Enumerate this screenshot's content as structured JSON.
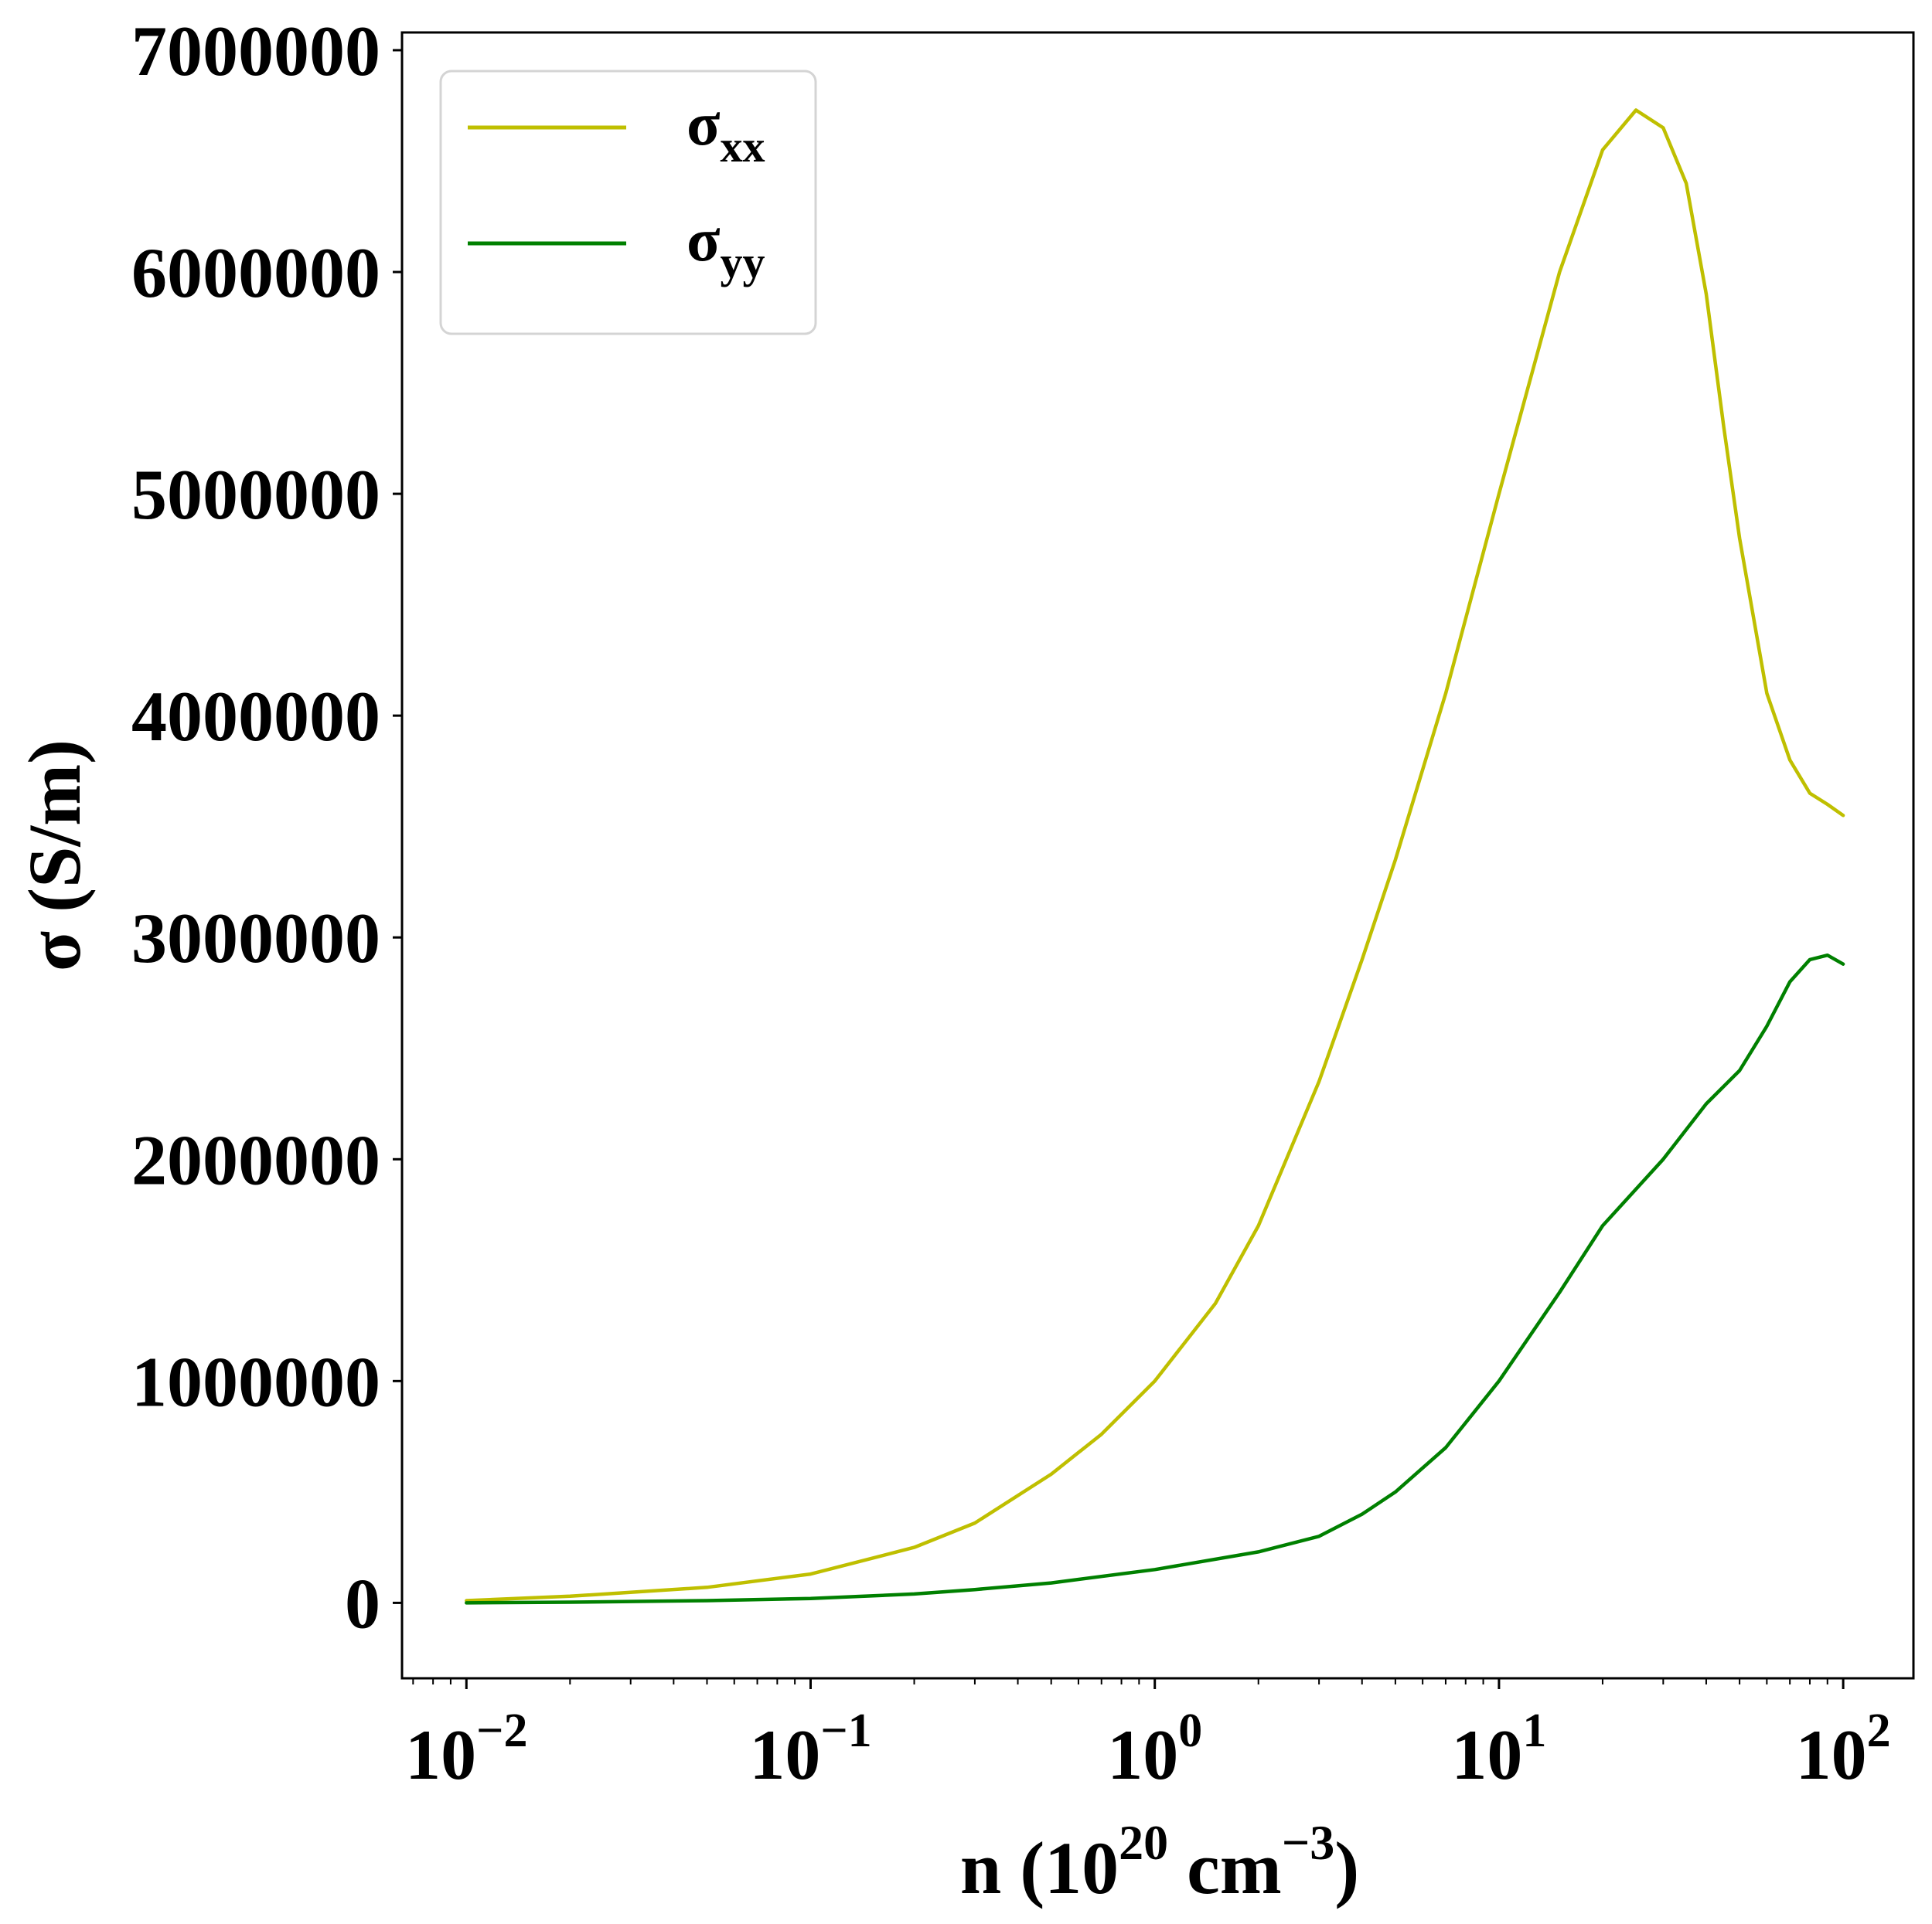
{
  "chart_data": {
    "type": "line",
    "xscale": "log",
    "xlabel": {
      "base": "n (10",
      "sup1": "20",
      "mid": " cm",
      "sup2": "−3",
      "end": ")"
    },
    "ylabel": "σ (S/m)",
    "xlim": [
      0.0065,
      160
    ],
    "ylim": [
      -340000,
      7080000
    ],
    "grid": false,
    "legend_position": "upper-left",
    "x_ticks": [
      {
        "value": 0.01,
        "base": "10",
        "exp": "−2"
      },
      {
        "value": 0.1,
        "base": "10",
        "exp": "−1"
      },
      {
        "value": 1,
        "base": "10",
        "exp": "0"
      },
      {
        "value": 10,
        "base": "10",
        "exp": "1"
      },
      {
        "value": 100,
        "base": "10",
        "exp": "2"
      }
    ],
    "y_ticks": [
      {
        "value": 0,
        "label": "0"
      },
      {
        "value": 1000000,
        "label": "1000000"
      },
      {
        "value": 2000000,
        "label": "2000000"
      },
      {
        "value": 3000000,
        "label": "3000000"
      },
      {
        "value": 4000000,
        "label": "4000000"
      },
      {
        "value": 5000000,
        "label": "5000000"
      },
      {
        "value": 6000000,
        "label": "6000000"
      },
      {
        "value": 7000000,
        "label": "7000000"
      }
    ],
    "series": [
      {
        "name": "σ",
        "subscript": "xx",
        "color": "#bfbf00",
        "points": [
          [
            0.01,
            10000
          ],
          [
            0.02,
            30000
          ],
          [
            0.05,
            70000
          ],
          [
            0.1,
            130000
          ],
          [
            0.2,
            250000
          ],
          [
            0.3,
            360000
          ],
          [
            0.5,
            580000
          ],
          [
            0.7,
            760000
          ],
          [
            1.0,
            1000000
          ],
          [
            1.5,
            1350000
          ],
          [
            2.0,
            1700000
          ],
          [
            3.0,
            2350000
          ],
          [
            4.0,
            2900000
          ],
          [
            5.0,
            3350000
          ],
          [
            7.0,
            4100000
          ],
          [
            10.0,
            5000000
          ],
          [
            15.0,
            6000000
          ],
          [
            20.0,
            6550000
          ],
          [
            25.0,
            6730000
          ],
          [
            30.0,
            6650000
          ],
          [
            35.0,
            6400000
          ],
          [
            40.0,
            5900000
          ],
          [
            45.0,
            5300000
          ],
          [
            50.0,
            4800000
          ],
          [
            60.0,
            4100000
          ],
          [
            70.0,
            3800000
          ],
          [
            80.0,
            3650000
          ],
          [
            90.0,
            3600000
          ],
          [
            100.0,
            3550000
          ]
        ]
      },
      {
        "name": "σ",
        "subscript": "yy",
        "color": "#008000",
        "points": [
          [
            0.01,
            0
          ],
          [
            0.02,
            3000
          ],
          [
            0.05,
            10000
          ],
          [
            0.1,
            20000
          ],
          [
            0.2,
            40000
          ],
          [
            0.3,
            60000
          ],
          [
            0.5,
            90000
          ],
          [
            1.0,
            150000
          ],
          [
            2.0,
            230000
          ],
          [
            3.0,
            300000
          ],
          [
            4.0,
            400000
          ],
          [
            5.0,
            500000
          ],
          [
            7.0,
            700000
          ],
          [
            10.0,
            1000000
          ],
          [
            15.0,
            1400000
          ],
          [
            20.0,
            1700000
          ],
          [
            30.0,
            2000000
          ],
          [
            40.0,
            2250000
          ],
          [
            50.0,
            2400000
          ],
          [
            60.0,
            2600000
          ],
          [
            70.0,
            2800000
          ],
          [
            80.0,
            2900000
          ],
          [
            90.0,
            2920000
          ],
          [
            100.0,
            2880000
          ]
        ]
      }
    ]
  }
}
